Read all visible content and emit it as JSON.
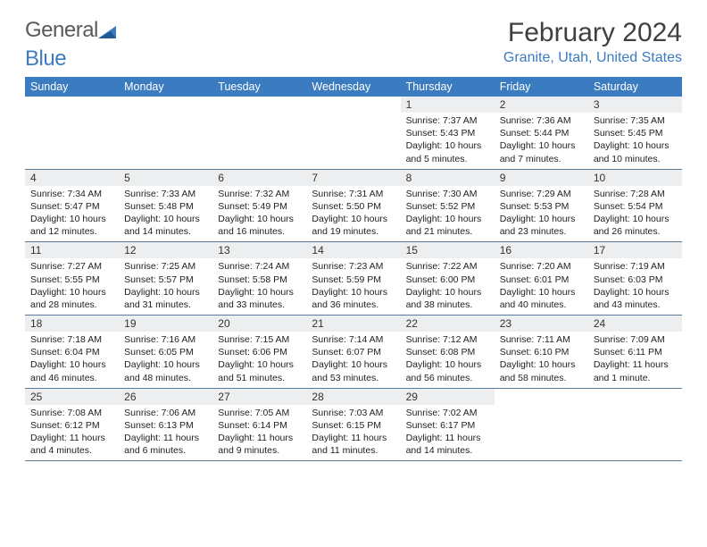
{
  "brand": {
    "part1": "General",
    "part2": "Blue"
  },
  "title": "February 2024",
  "location": "Granite, Utah, United States",
  "colors": {
    "header_bg": "#3b7bbf",
    "header_text": "#ffffff",
    "daynum_bg": "#eceeef",
    "rule": "#5a7a9a",
    "title_text": "#404040",
    "location_text": "#3b7bbf",
    "logo_gray": "#5a5a5a"
  },
  "typography": {
    "title_fontsize": 30,
    "location_fontsize": 16,
    "dayheader_fontsize": 12.5,
    "daynum_fontsize": 12,
    "body_fontsize": 10.5
  },
  "weekdays": [
    "Sunday",
    "Monday",
    "Tuesday",
    "Wednesday",
    "Thursday",
    "Friday",
    "Saturday"
  ],
  "weeks": [
    [
      null,
      null,
      null,
      null,
      {
        "n": "1",
        "sr": "7:37 AM",
        "ss": "5:43 PM",
        "dl": "10 hours and 5 minutes."
      },
      {
        "n": "2",
        "sr": "7:36 AM",
        "ss": "5:44 PM",
        "dl": "10 hours and 7 minutes."
      },
      {
        "n": "3",
        "sr": "7:35 AM",
        "ss": "5:45 PM",
        "dl": "10 hours and 10 minutes."
      }
    ],
    [
      {
        "n": "4",
        "sr": "7:34 AM",
        "ss": "5:47 PM",
        "dl": "10 hours and 12 minutes."
      },
      {
        "n": "5",
        "sr": "7:33 AM",
        "ss": "5:48 PM",
        "dl": "10 hours and 14 minutes."
      },
      {
        "n": "6",
        "sr": "7:32 AM",
        "ss": "5:49 PM",
        "dl": "10 hours and 16 minutes."
      },
      {
        "n": "7",
        "sr": "7:31 AM",
        "ss": "5:50 PM",
        "dl": "10 hours and 19 minutes."
      },
      {
        "n": "8",
        "sr": "7:30 AM",
        "ss": "5:52 PM",
        "dl": "10 hours and 21 minutes."
      },
      {
        "n": "9",
        "sr": "7:29 AM",
        "ss": "5:53 PM",
        "dl": "10 hours and 23 minutes."
      },
      {
        "n": "10",
        "sr": "7:28 AM",
        "ss": "5:54 PM",
        "dl": "10 hours and 26 minutes."
      }
    ],
    [
      {
        "n": "11",
        "sr": "7:27 AM",
        "ss": "5:55 PM",
        "dl": "10 hours and 28 minutes."
      },
      {
        "n": "12",
        "sr": "7:25 AM",
        "ss": "5:57 PM",
        "dl": "10 hours and 31 minutes."
      },
      {
        "n": "13",
        "sr": "7:24 AM",
        "ss": "5:58 PM",
        "dl": "10 hours and 33 minutes."
      },
      {
        "n": "14",
        "sr": "7:23 AM",
        "ss": "5:59 PM",
        "dl": "10 hours and 36 minutes."
      },
      {
        "n": "15",
        "sr": "7:22 AM",
        "ss": "6:00 PM",
        "dl": "10 hours and 38 minutes."
      },
      {
        "n": "16",
        "sr": "7:20 AM",
        "ss": "6:01 PM",
        "dl": "10 hours and 40 minutes."
      },
      {
        "n": "17",
        "sr": "7:19 AM",
        "ss": "6:03 PM",
        "dl": "10 hours and 43 minutes."
      }
    ],
    [
      {
        "n": "18",
        "sr": "7:18 AM",
        "ss": "6:04 PM",
        "dl": "10 hours and 46 minutes."
      },
      {
        "n": "19",
        "sr": "7:16 AM",
        "ss": "6:05 PM",
        "dl": "10 hours and 48 minutes."
      },
      {
        "n": "20",
        "sr": "7:15 AM",
        "ss": "6:06 PM",
        "dl": "10 hours and 51 minutes."
      },
      {
        "n": "21",
        "sr": "7:14 AM",
        "ss": "6:07 PM",
        "dl": "10 hours and 53 minutes."
      },
      {
        "n": "22",
        "sr": "7:12 AM",
        "ss": "6:08 PM",
        "dl": "10 hours and 56 minutes."
      },
      {
        "n": "23",
        "sr": "7:11 AM",
        "ss": "6:10 PM",
        "dl": "10 hours and 58 minutes."
      },
      {
        "n": "24",
        "sr": "7:09 AM",
        "ss": "6:11 PM",
        "dl": "11 hours and 1 minute."
      }
    ],
    [
      {
        "n": "25",
        "sr": "7:08 AM",
        "ss": "6:12 PM",
        "dl": "11 hours and 4 minutes."
      },
      {
        "n": "26",
        "sr": "7:06 AM",
        "ss": "6:13 PM",
        "dl": "11 hours and 6 minutes."
      },
      {
        "n": "27",
        "sr": "7:05 AM",
        "ss": "6:14 PM",
        "dl": "11 hours and 9 minutes."
      },
      {
        "n": "28",
        "sr": "7:03 AM",
        "ss": "6:15 PM",
        "dl": "11 hours and 11 minutes."
      },
      {
        "n": "29",
        "sr": "7:02 AM",
        "ss": "6:17 PM",
        "dl": "11 hours and 14 minutes."
      },
      null,
      null
    ]
  ],
  "labels": {
    "sunrise": "Sunrise: ",
    "sunset": "Sunset: ",
    "daylight": "Daylight: "
  }
}
